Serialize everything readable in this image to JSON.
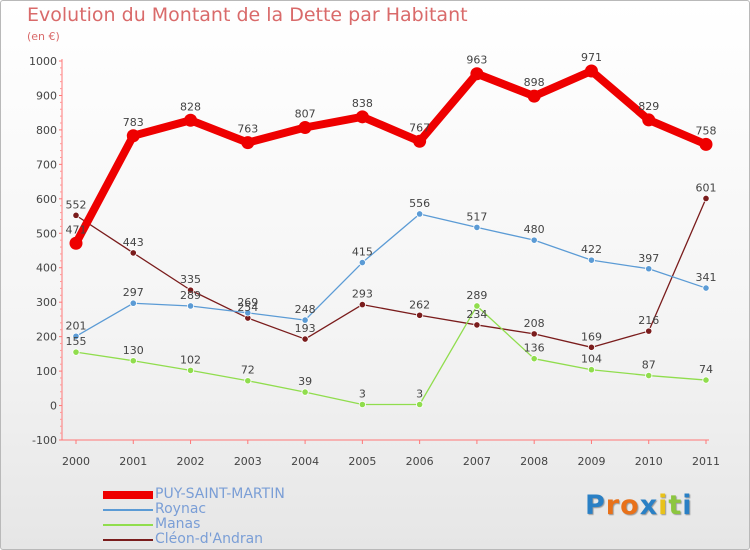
{
  "chart_data": {
    "type": "line",
    "title": "Evolution du Montant de la Dette par Habitant",
    "subtitle": "(en €)",
    "categories": [
      "2000",
      "2001",
      "2002",
      "2003",
      "2004",
      "2005",
      "2006",
      "2007",
      "2008",
      "2009",
      "2010",
      "2011"
    ],
    "ylim": [
      -100,
      1000
    ],
    "yticks": [
      -100,
      0,
      100,
      200,
      300,
      400,
      500,
      600,
      700,
      800,
      900,
      1000
    ],
    "grid": false,
    "legend_position": "bottom-left",
    "series": [
      {
        "name": "PUY-SAINT-MARTIN",
        "color": "#ee0000",
        "values": [
          471,
          783,
          828,
          763,
          807,
          838,
          767,
          963,
          898,
          971,
          829,
          758
        ]
      },
      {
        "name": "Roynac",
        "color": "#5b9bd5",
        "values": [
          201,
          297,
          289,
          269,
          248,
          415,
          556,
          517,
          480,
          422,
          397,
          341
        ]
      },
      {
        "name": "Manas",
        "color": "#90dd4d",
        "values": [
          155,
          130,
          102,
          72,
          39,
          3,
          3,
          289,
          136,
          104,
          87,
          74
        ]
      },
      {
        "name": "Cléon-d'Andran",
        "color": "#7a1c1c",
        "values": [
          552,
          443,
          335,
          254,
          193,
          293,
          262,
          234,
          208,
          169,
          216,
          601
        ]
      }
    ]
  },
  "logo": {
    "letters": [
      "P",
      "r",
      "o",
      "x",
      "i",
      "t",
      "i"
    ],
    "colors": [
      "#2a80c5",
      "#e8711a",
      "#e8711a",
      "#2a80c5",
      "#e8c21a",
      "#8cc63f",
      "#2a80c5"
    ]
  }
}
